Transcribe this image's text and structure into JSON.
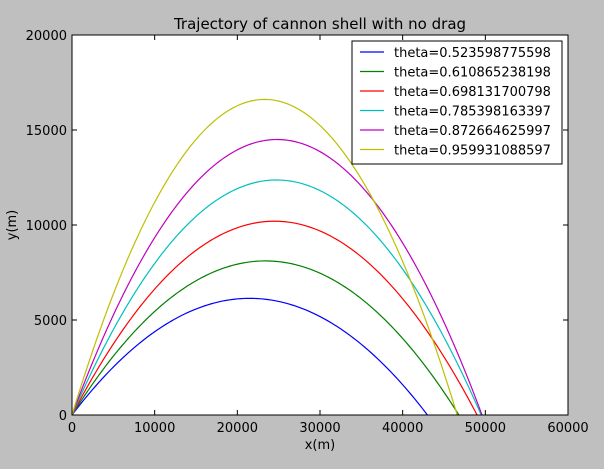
{
  "chart_data": {
    "type": "line",
    "title": "Trajectory of cannon shell with no drag",
    "xlabel": "x(m)",
    "ylabel": "y(m)",
    "xlim": [
      0,
      60000
    ],
    "ylim": [
      0,
      20000
    ],
    "xticks": [
      "0",
      "10000",
      "20000",
      "30000",
      "40000",
      "50000",
      "60000"
    ],
    "yticks": [
      "0",
      "5000",
      "10000",
      "15000",
      "20000"
    ],
    "grid": false,
    "legend_position": "top-right",
    "series": [
      {
        "name": "theta=0.523598775598",
        "color": "#0000ff",
        "x": [
          0,
          4300,
          8600,
          12900,
          17200,
          21500,
          25800,
          30100,
          34400,
          38700,
          43000
        ],
        "y": [
          0,
          2210,
          3930,
          5160,
          5900,
          6140,
          5900,
          5160,
          3930,
          2210,
          0
        ]
      },
      {
        "name": "theta=0.610865238198",
        "color": "#008000",
        "x": [
          0,
          4680,
          9360,
          14040,
          18720,
          23400,
          28080,
          32760,
          37440,
          42120,
          46800
        ],
        "y": [
          0,
          2920,
          5190,
          6810,
          7790,
          8110,
          7790,
          6810,
          5190,
          2920,
          0
        ]
      },
      {
        "name": "theta=0.698131700798",
        "color": "#ff0000",
        "x": [
          0,
          4900,
          9800,
          14700,
          19600,
          24500,
          29400,
          34300,
          39200,
          44100,
          49000
        ],
        "y": [
          0,
          3670,
          6530,
          8570,
          9790,
          10200,
          9790,
          8570,
          6530,
          3670,
          0
        ]
      },
      {
        "name": "theta=0.785398163397",
        "color": "#00bfbf",
        "x": [
          0,
          4950,
          9900,
          14850,
          19800,
          24750,
          29700,
          34650,
          39600,
          44550,
          49500
        ],
        "y": [
          0,
          4450,
          7920,
          10390,
          11880,
          12370,
          11880,
          10390,
          7920,
          4450,
          0
        ]
      },
      {
        "name": "theta=0.872664625997",
        "color": "#bf00bf",
        "x": [
          0,
          4960,
          9920,
          14880,
          19840,
          24800,
          29760,
          34720,
          39680,
          44640,
          49600
        ],
        "y": [
          0,
          5220,
          9280,
          12180,
          13920,
          14500,
          13920,
          12180,
          9280,
          5220,
          0
        ]
      },
      {
        "name": "theta=0.959931088597",
        "color": "#bfbf00",
        "x": [
          0,
          4660,
          9320,
          13980,
          18640,
          23300,
          27960,
          32620,
          37280,
          41940,
          46600
        ],
        "y": [
          0,
          5980,
          10630,
          13950,
          15940,
          16610,
          15940,
          13950,
          10630,
          5980,
          0
        ]
      }
    ]
  }
}
